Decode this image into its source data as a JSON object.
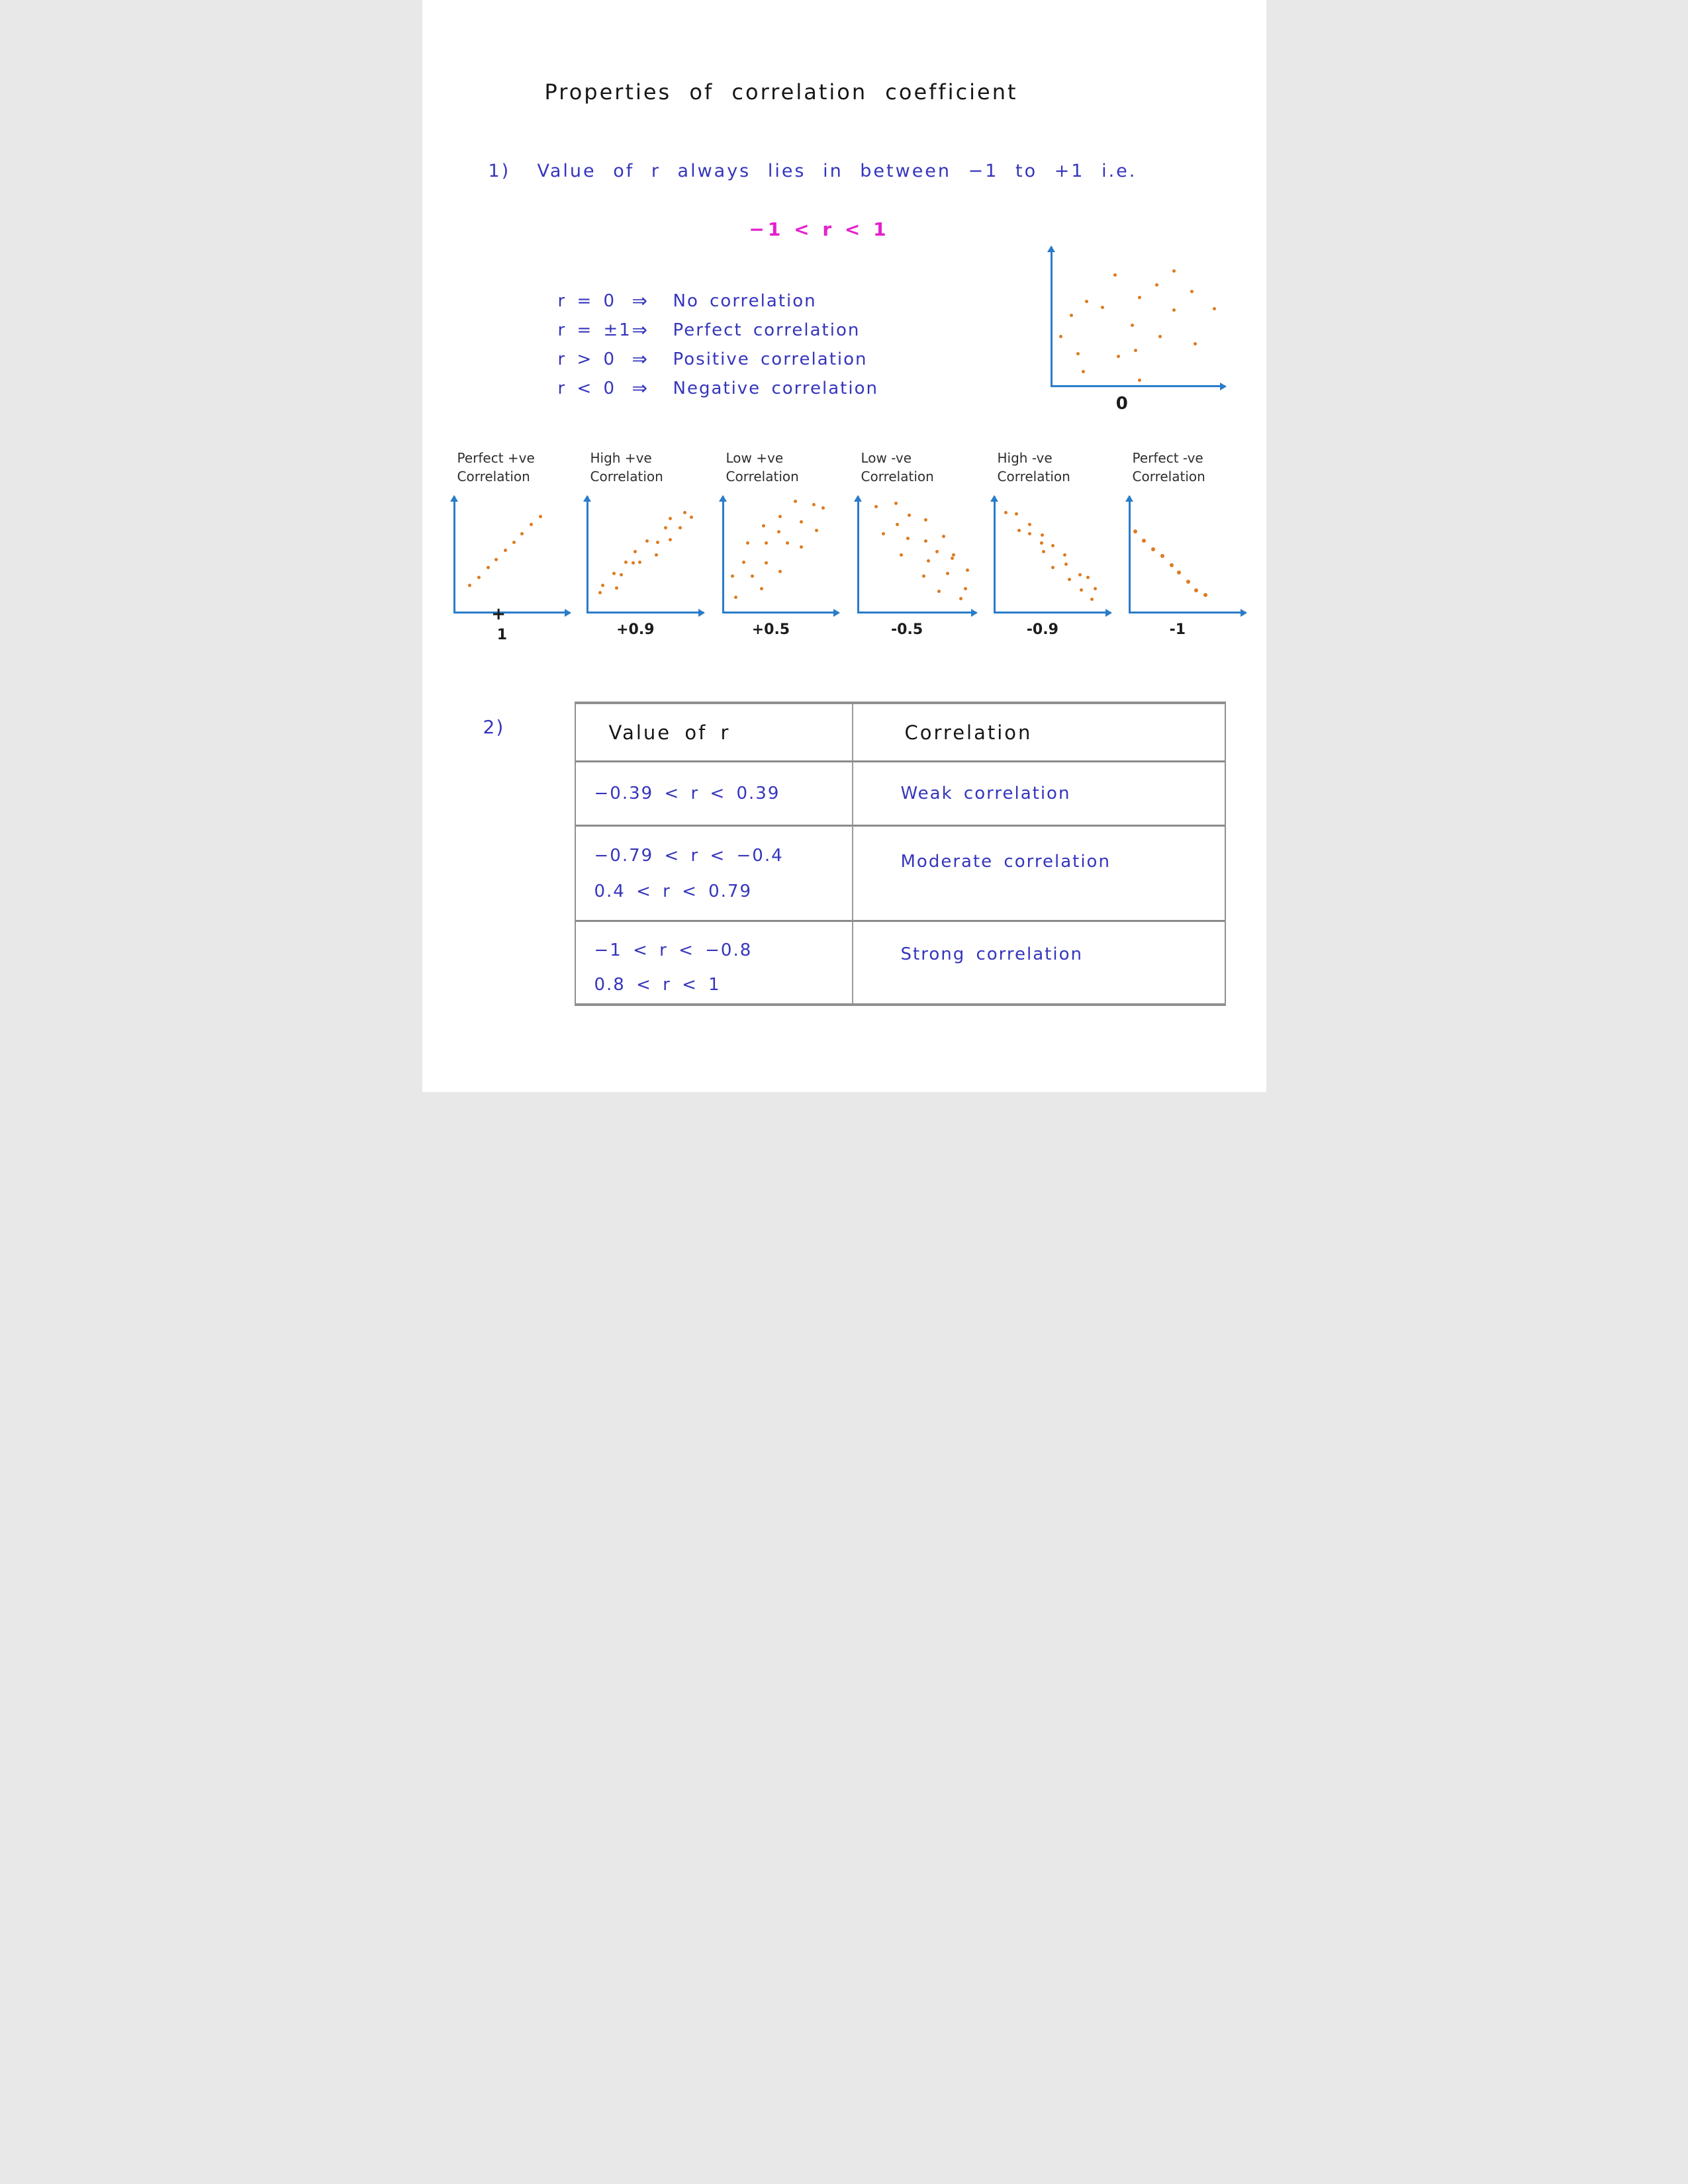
{
  "title": "Properties of correlation coefficient",
  "item1": {
    "marker": "1)",
    "text": "Value of r always lies in between −1 to +1  i.e.",
    "formula": "−1 < r < 1"
  },
  "definitions": [
    {
      "lhs": "r = 0",
      "arrow": "⇒",
      "rhs": "No correlation"
    },
    {
      "lhs": "r = ±1",
      "arrow": "⇒",
      "rhs": "Perfect correlation"
    },
    {
      "lhs": "r > 0",
      "arrow": "⇒",
      "rhs": "Positive correlation"
    },
    {
      "lhs": "r < 0",
      "arrow": "⇒",
      "rhs": "Negative correlation"
    }
  ],
  "colors": {
    "ink_blue": "#3535bd",
    "ink_black": "#161616",
    "ink_magenta": "#e520cc",
    "axis_blue": "#2a7cc9",
    "dot_orange": "#dd7a1f",
    "table_border": "#8f8f8f"
  },
  "chart_data": [
    {
      "id": "no-corr",
      "type": "scatter",
      "xlabel": "0",
      "dot": 5,
      "meaning": "r = 0, no correlation",
      "points": [
        [
          37,
          80
        ],
        [
          71,
          83
        ],
        [
          61,
          73
        ],
        [
          81,
          68
        ],
        [
          51,
          64
        ],
        [
          21,
          61
        ],
        [
          30,
          57
        ],
        [
          71,
          55
        ],
        [
          94,
          56
        ],
        [
          12,
          51
        ],
        [
          47,
          44
        ],
        [
          6,
          36
        ],
        [
          63,
          36
        ],
        [
          83,
          31
        ],
        [
          49,
          26
        ],
        [
          16,
          24
        ],
        [
          39,
          22
        ],
        [
          19,
          11
        ],
        [
          51,
          5
        ]
      ]
    },
    {
      "id": "perfect-pos",
      "type": "scatter",
      "title_line1": "Perfect +ve",
      "title_line2": "Correlation",
      "x_tick": "+",
      "xlabel": "1",
      "dot": 5,
      "points": [
        [
          14,
          24
        ],
        [
          22,
          31
        ],
        [
          30,
          39
        ],
        [
          37,
          46
        ],
        [
          45,
          54
        ],
        [
          52,
          61
        ],
        [
          59,
          68
        ],
        [
          67,
          76
        ],
        [
          75,
          83
        ]
      ]
    },
    {
      "id": "high-pos",
      "type": "scatter",
      "title_line1": "High +ve",
      "title_line2": "Correlation",
      "xlabel": "+0.9",
      "dot": 5,
      "points": [
        [
          12,
          18
        ],
        [
          14,
          24
        ],
        [
          26,
          22
        ],
        [
          24,
          34
        ],
        [
          30,
          33
        ],
        [
          34,
          44
        ],
        [
          40,
          43
        ],
        [
          46,
          44
        ],
        [
          42,
          53
        ],
        [
          60,
          50
        ],
        [
          52,
          62
        ],
        [
          61,
          61
        ],
        [
          72,
          63
        ],
        [
          68,
          73
        ],
        [
          80,
          73
        ],
        [
          72,
          81
        ],
        [
          84,
          86
        ],
        [
          90,
          82
        ]
      ]
    },
    {
      "id": "low-pos",
      "type": "scatter",
      "title_line1": "Low +ve",
      "title_line2": "Correlation",
      "xlabel": "+0.5",
      "dot": 5,
      "points": [
        [
          63,
          96
        ],
        [
          79,
          93
        ],
        [
          87,
          90
        ],
        [
          50,
          83
        ],
        [
          68,
          78
        ],
        [
          36,
          75
        ],
        [
          49,
          70
        ],
        [
          81,
          71
        ],
        [
          22,
          60
        ],
        [
          38,
          60
        ],
        [
          56,
          60
        ],
        [
          68,
          57
        ],
        [
          19,
          44
        ],
        [
          38,
          43
        ],
        [
          50,
          36
        ],
        [
          9,
          32
        ],
        [
          26,
          32
        ],
        [
          34,
          21
        ],
        [
          12,
          14
        ]
      ]
    },
    {
      "id": "low-neg",
      "type": "scatter",
      "title_line1": "Low -ve",
      "title_line2": "Correlation",
      "xlabel": "-0.5",
      "dot": 5,
      "points": [
        [
          16,
          91
        ],
        [
          33,
          94
        ],
        [
          44,
          84
        ],
        [
          58,
          80
        ],
        [
          34,
          76
        ],
        [
          22,
          68
        ],
        [
          43,
          64
        ],
        [
          58,
          62
        ],
        [
          73,
          66
        ],
        [
          67,
          53
        ],
        [
          81,
          50
        ],
        [
          37,
          50
        ],
        [
          60,
          45
        ],
        [
          80,
          47
        ],
        [
          93,
          37
        ],
        [
          56,
          32
        ],
        [
          76,
          34
        ],
        [
          91,
          21
        ],
        [
          69,
          19
        ],
        [
          87,
          13
        ]
      ]
    },
    {
      "id": "high-neg",
      "type": "scatter",
      "title_line1": "High -ve",
      "title_line2": "Correlation",
      "xlabel": "-0.9",
      "dot": 5,
      "points": [
        [
          11,
          86
        ],
        [
          20,
          85
        ],
        [
          31,
          76
        ],
        [
          22,
          71
        ],
        [
          31,
          68
        ],
        [
          42,
          67
        ],
        [
          41,
          60
        ],
        [
          51,
          58
        ],
        [
          43,
          53
        ],
        [
          61,
          50
        ],
        [
          62,
          42
        ],
        [
          51,
          39
        ],
        [
          65,
          29
        ],
        [
          74,
          33
        ],
        [
          81,
          31
        ],
        [
          75,
          20
        ],
        [
          87,
          21
        ],
        [
          84,
          12
        ]
      ]
    },
    {
      "id": "perfect-neg",
      "type": "scatter",
      "title_line1": "Perfect -ve",
      "title_line2": "Correlation",
      "xlabel": "-1",
      "dot": 6,
      "points": [
        [
          6,
          70
        ],
        [
          13,
          62
        ],
        [
          21,
          55
        ],
        [
          29,
          49
        ],
        [
          37,
          41
        ],
        [
          43,
          35
        ],
        [
          51,
          27
        ],
        [
          58,
          20
        ],
        [
          66,
          16
        ]
      ]
    }
  ],
  "item2": {
    "marker": "2)"
  },
  "table": {
    "headers": [
      "Value of r",
      "Correlation"
    ],
    "rows": [
      {
        "ranges": [
          "−0.39 < r < 0.39"
        ],
        "label": "Weak correlation"
      },
      {
        "ranges": [
          "−0.79 < r < −0.4",
          "0.4 < r < 0.79"
        ],
        "label": "Moderate correlation"
      },
      {
        "ranges": [
          "−1 < r < −0.8",
          "0.8 < r < 1"
        ],
        "label": "Strong correlation"
      }
    ]
  }
}
